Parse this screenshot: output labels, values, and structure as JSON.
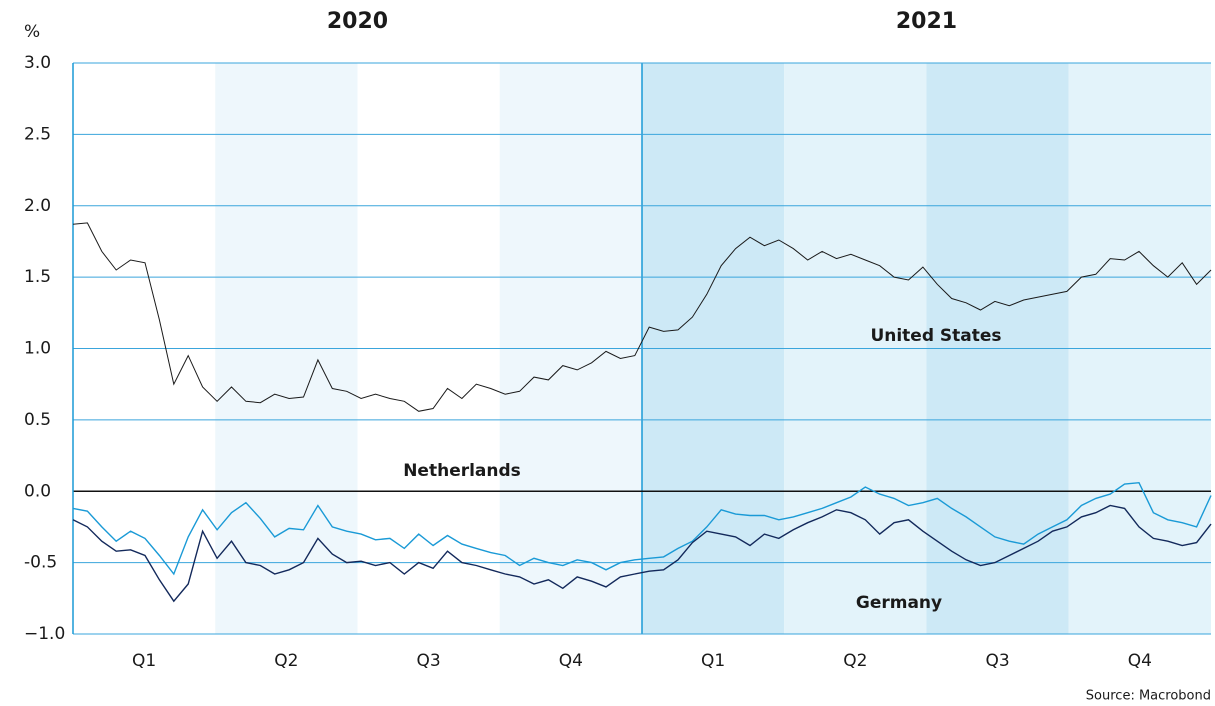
{
  "chart_data": {
    "type": "line",
    "unit_label": "%",
    "years": [
      "2020",
      "2021"
    ],
    "quarters": [
      "Q1",
      "Q2",
      "Q3",
      "Q4",
      "Q1",
      "Q2",
      "Q3",
      "Q4"
    ],
    "source": "Source: Macrobond",
    "ylim": [
      -1,
      3
    ],
    "yticks": [
      {
        "value": 3,
        "label": "3.0"
      },
      2.5,
      {
        "value": 2,
        "label": "2.0"
      },
      1.5,
      {
        "value": 1,
        "label": "1.0"
      },
      0.5,
      {
        "value": 0,
        "label": "0.0"
      },
      -0.5,
      {
        "value": -1,
        "label": "−1.0"
      }
    ],
    "grid": true,
    "series": [
      {
        "name": "United States",
        "color": "#1a1a1a",
        "label_color": "#3d4a5c",
        "values": [
          1.87,
          1.88,
          1.68,
          1.55,
          1.62,
          1.6,
          1.2,
          0.75,
          0.95,
          0.73,
          0.63,
          0.73,
          0.63,
          0.62,
          0.68,
          0.65,
          0.66,
          0.92,
          0.72,
          0.7,
          0.65,
          0.68,
          0.65,
          0.63,
          0.56,
          0.58,
          0.72,
          0.65,
          0.75,
          0.72,
          0.68,
          0.7,
          0.8,
          0.78,
          0.88,
          0.85,
          0.9,
          0.98,
          0.93,
          0.95,
          1.15,
          1.12,
          1.13,
          1.22,
          1.38,
          1.58,
          1.7,
          1.78,
          1.72,
          1.76,
          1.7,
          1.62,
          1.68,
          1.63,
          1.66,
          1.62,
          1.58,
          1.5,
          1.48,
          1.57,
          1.45,
          1.35,
          1.32,
          1.27,
          1.33,
          1.3,
          1.34,
          1.36,
          1.38,
          1.4,
          1.5,
          1.52,
          1.63,
          1.62,
          1.68,
          1.58,
          1.5,
          1.6,
          1.45,
          1.55
        ]
      },
      {
        "name": "Netherlands",
        "color": "#1a9ad6",
        "label_color": "#1a9ad6",
        "values": [
          -0.12,
          -0.14,
          -0.25,
          -0.35,
          -0.28,
          -0.33,
          -0.45,
          -0.58,
          -0.32,
          -0.13,
          -0.27,
          -0.15,
          -0.08,
          -0.19,
          -0.32,
          -0.26,
          -0.27,
          -0.1,
          -0.25,
          -0.28,
          -0.3,
          -0.34,
          -0.33,
          -0.4,
          -0.3,
          -0.38,
          -0.31,
          -0.37,
          -0.4,
          -0.43,
          -0.45,
          -0.52,
          -0.47,
          -0.5,
          -0.52,
          -0.48,
          -0.5,
          -0.55,
          -0.5,
          -0.48,
          -0.47,
          -0.46,
          -0.4,
          -0.35,
          -0.25,
          -0.13,
          -0.16,
          -0.17,
          -0.17,
          -0.2,
          -0.18,
          -0.15,
          -0.12,
          -0.08,
          -0.04,
          0.03,
          -0.02,
          -0.05,
          -0.1,
          -0.08,
          -0.05,
          -0.12,
          -0.18,
          -0.25,
          -0.32,
          -0.35,
          -0.37,
          -0.3,
          -0.25,
          -0.2,
          -0.1,
          -0.05,
          -0.02,
          0.05,
          0.06,
          -0.15,
          -0.2,
          -0.22,
          -0.25,
          -0.03
        ]
      },
      {
        "name": "Germany",
        "color": "#13295b",
        "label_color": "#13295b",
        "values": [
          -0.2,
          -0.25,
          -0.35,
          -0.42,
          -0.41,
          -0.45,
          -0.62,
          -0.77,
          -0.65,
          -0.28,
          -0.47,
          -0.35,
          -0.5,
          -0.52,
          -0.58,
          -0.55,
          -0.5,
          -0.33,
          -0.44,
          -0.5,
          -0.49,
          -0.52,
          -0.5,
          -0.58,
          -0.5,
          -0.54,
          -0.42,
          -0.5,
          -0.52,
          -0.55,
          -0.58,
          -0.6,
          -0.65,
          -0.62,
          -0.68,
          -0.6,
          -0.63,
          -0.67,
          -0.6,
          -0.58,
          -0.56,
          -0.55,
          -0.48,
          -0.36,
          -0.28,
          -0.3,
          -0.32,
          -0.38,
          -0.3,
          -0.33,
          -0.27,
          -0.22,
          -0.18,
          -0.13,
          -0.15,
          -0.2,
          -0.3,
          -0.22,
          -0.2,
          -0.28,
          -0.35,
          -0.42,
          -0.48,
          -0.52,
          -0.5,
          -0.45,
          -0.4,
          -0.35,
          -0.28,
          -0.25,
          -0.18,
          -0.15,
          -0.1,
          -0.12,
          -0.25,
          -0.33,
          -0.35,
          -0.38,
          -0.36,
          -0.23
        ]
      }
    ]
  }
}
